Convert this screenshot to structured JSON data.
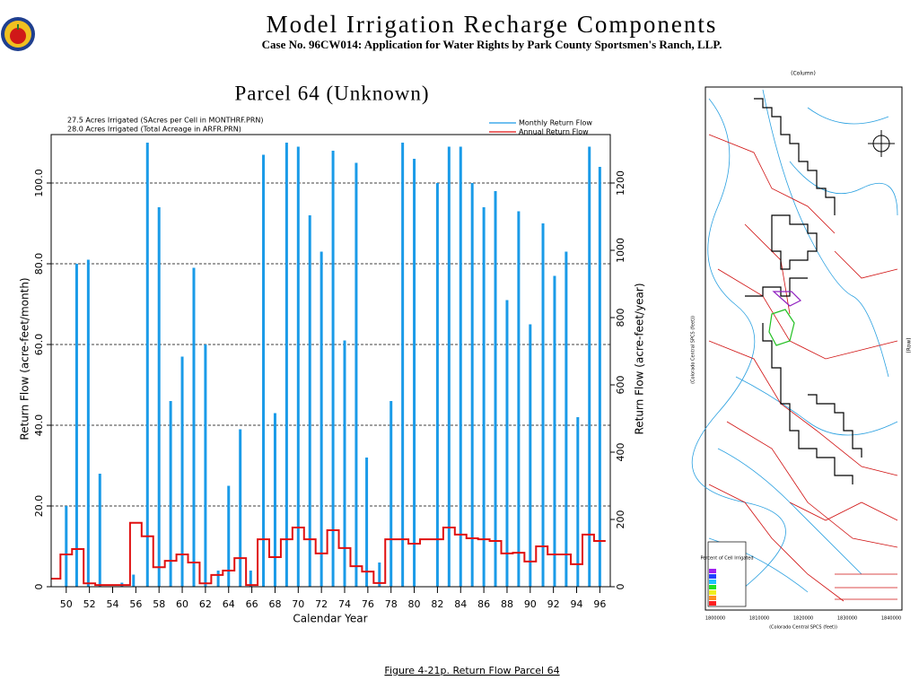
{
  "header": {
    "title": "Model Irrigation Recharge Components",
    "subtitle": "Case No. 96CW014: Application for Water Rights by Park County Sportsmen's Ranch, LLP."
  },
  "chart_data": {
    "type": "combo",
    "title": "Parcel 64 (Unknown)",
    "annotations": [
      "27.5 Acres Irrigated (SAcres per Cell in MONTHRF.PRN)",
      "28.0 Acres Irrigated (Total Acreage in ARFR.PRN)"
    ],
    "xlabel": "Calendar Year",
    "ylabel": "Return Flow (acre-feet/month)",
    "y2label": "Return Flow (acre-feet/year)",
    "xlim": [
      1948.7,
      1996.9
    ],
    "xticks": [
      {
        "value": 1950,
        "label": "50"
      },
      {
        "value": 1952,
        "label": "52"
      },
      {
        "value": 1954,
        "label": "54"
      },
      {
        "value": 1956,
        "label": "56"
      },
      {
        "value": 1958,
        "label": "58"
      },
      {
        "value": 1960,
        "label": "60"
      },
      {
        "value": 1962,
        "label": "62"
      },
      {
        "value": 1964,
        "label": "64"
      },
      {
        "value": 1966,
        "label": "66"
      },
      {
        "value": 1968,
        "label": "68"
      },
      {
        "value": 1970,
        "label": "70"
      },
      {
        "value": 1972,
        "label": "72"
      },
      {
        "value": 1974,
        "label": "74"
      },
      {
        "value": 1976,
        "label": "76"
      },
      {
        "value": 1978,
        "label": "78"
      },
      {
        "value": 1980,
        "label": "80"
      },
      {
        "value": 1982,
        "label": "82"
      },
      {
        "value": 1984,
        "label": "84"
      },
      {
        "value": 1986,
        "label": "86"
      },
      {
        "value": 1988,
        "label": "88"
      },
      {
        "value": 1990,
        "label": "90"
      },
      {
        "value": 1992,
        "label": "92"
      },
      {
        "value": 1994,
        "label": "94"
      },
      {
        "value": 1996,
        "label": "96"
      }
    ],
    "ylim": [
      0,
      112
    ],
    "yticks": [
      0,
      {
        "value": 20,
        "label": "20.0"
      },
      {
        "value": 40,
        "label": "40.0"
      },
      {
        "value": 60,
        "label": "60.0"
      },
      {
        "value": 80,
        "label": "80.0"
      },
      {
        "value": 100,
        "label": "100.0"
      }
    ],
    "y2lim": [
      0,
      1344
    ],
    "y2ticks": [
      0,
      200,
      400,
      600,
      800,
      1000,
      1200
    ],
    "grid": true,
    "series": [
      {
        "name": "Monthly Return Flow",
        "type": "stem",
        "color": "#1a9be8",
        "x": [
          1950.0,
          1950.9,
          1951.9,
          1952.9,
          1954.8,
          1955.8,
          1957.0,
          1958.0,
          1959.0,
          1960.0,
          1961.0,
          1962.0,
          1963.1,
          1964.0,
          1965.0,
          1965.9,
          1967.0,
          1968.0,
          1969.0,
          1970.0,
          1971.0,
          1972.0,
          1973.0,
          1974.0,
          1975.0,
          1975.9,
          1977.0,
          1978.0,
          1979.0,
          1980.0,
          1982.0,
          1983.0,
          1984.0,
          1985.0,
          1986.0,
          1987.0,
          1988.0,
          1989.0,
          1990.0,
          1991.1,
          1992.1,
          1993.1,
          1994.1,
          1995.1,
          1996.0
        ],
        "values": [
          20,
          80,
          81,
          28,
          1,
          3,
          110,
          94,
          46,
          57,
          79,
          60,
          4,
          25,
          39,
          4,
          107,
          43,
          110,
          109,
          92,
          83,
          108,
          61,
          105,
          32,
          6,
          46,
          110,
          106,
          100,
          109,
          109,
          100,
          94,
          98,
          71,
          93,
          65,
          90,
          77,
          83,
          42,
          109,
          104
        ]
      },
      {
        "name": "Annual Return Flow",
        "type": "step",
        "axis": "y2",
        "color": "#e01010",
        "x": [
          1949,
          1950,
          1951,
          1952,
          1953,
          1954,
          1955,
          1956,
          1957,
          1958,
          1959,
          1960,
          1961,
          1962,
          1963,
          1964,
          1965,
          1966,
          1967,
          1968,
          1969,
          1970,
          1971,
          1972,
          1973,
          1974,
          1975,
          1976,
          1977,
          1978,
          1979,
          1980,
          1981,
          1982,
          1983,
          1984,
          1985,
          1986,
          1987,
          1988,
          1989,
          1990,
          1991,
          1992,
          1993,
          1994,
          1995,
          1996
        ],
        "values": [
          24,
          96,
          112,
          10,
          5,
          5,
          5,
          190,
          150,
          58,
          77,
          96,
          72,
          10,
          35,
          48,
          85,
          5,
          141,
          88,
          141,
          176,
          141,
          99,
          168,
          115,
          61,
          45,
          11,
          141,
          141,
          128,
          141,
          141,
          176,
          155,
          144,
          141,
          136,
          99,
          101,
          75,
          120,
          96,
          96,
          67,
          155,
          136
        ]
      }
    ]
  },
  "map": {
    "column_label": "(Column)",
    "axis_label": "(Colorado Central SPCS (feet))",
    "row_label": "(Row)",
    "legend_title": "Percent of Cell Irrigated",
    "bottom_ticks": [
      "1800000",
      "1810000",
      "1820000",
      "1830000",
      "1840000"
    ]
  },
  "footer": "Figure 4-21p.  Return Flow Parcel 64"
}
